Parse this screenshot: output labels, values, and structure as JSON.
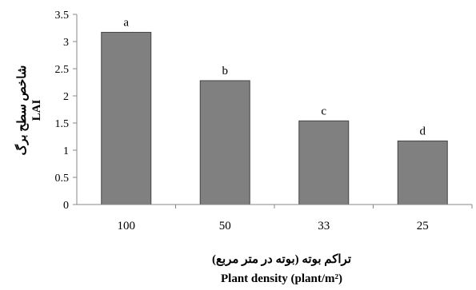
{
  "chart_data": {
    "type": "bar",
    "categories": [
      "100",
      "50",
      "33",
      "25"
    ],
    "values": [
      3.17,
      2.28,
      1.54,
      1.17
    ],
    "bar_labels": [
      "a",
      "b",
      "c",
      "d"
    ],
    "ylim": [
      0,
      3.5
    ],
    "yticks": [
      "0",
      "0.5",
      "1",
      "1.5",
      "2",
      "2.5",
      "3",
      "3.5"
    ],
    "ylabel_fa": "شاخص سطح برگ",
    "ylabel": "LAI",
    "xlabel_fa": "تراکم بوته (بوته در متر مربع)",
    "xlabel": "Plant density (plant/m²)",
    "grid": false,
    "colors": {
      "bar_fill": "#808080",
      "bar_stroke": "#444444",
      "axis": "#888888"
    }
  }
}
